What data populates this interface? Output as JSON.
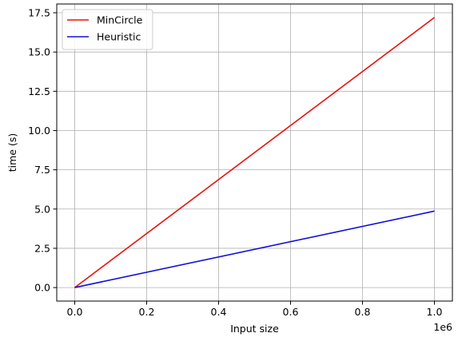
{
  "chart_data": {
    "type": "line",
    "xlabel": "Input size",
    "ylabel": "time (s)",
    "x_offset_label": "1e6",
    "xlim": [
      -50000,
      1050000
    ],
    "ylim": [
      -0.86,
      18.06
    ],
    "x_ticks": [
      0,
      200000,
      400000,
      600000,
      800000,
      1000000
    ],
    "x_tick_labels": [
      "0.0",
      "0.2",
      "0.4",
      "0.6",
      "0.8",
      "1.0"
    ],
    "y_ticks": [
      0,
      2.5,
      5,
      7.5,
      10,
      12.5,
      15,
      17.5
    ],
    "y_tick_labels": [
      "0.0",
      "2.5",
      "5.0",
      "7.5",
      "10.0",
      "12.5",
      "15.0",
      "17.5"
    ],
    "grid": true,
    "legend_position": "top-left",
    "series": [
      {
        "name": "MinCircle",
        "color": "#e8120c",
        "x": [
          0,
          1000000
        ],
        "y": [
          0,
          17.2
        ]
      },
      {
        "name": "Heuristic",
        "color": "#1010d8",
        "x": [
          0,
          1000000
        ],
        "y": [
          0,
          4.87
        ]
      }
    ]
  }
}
